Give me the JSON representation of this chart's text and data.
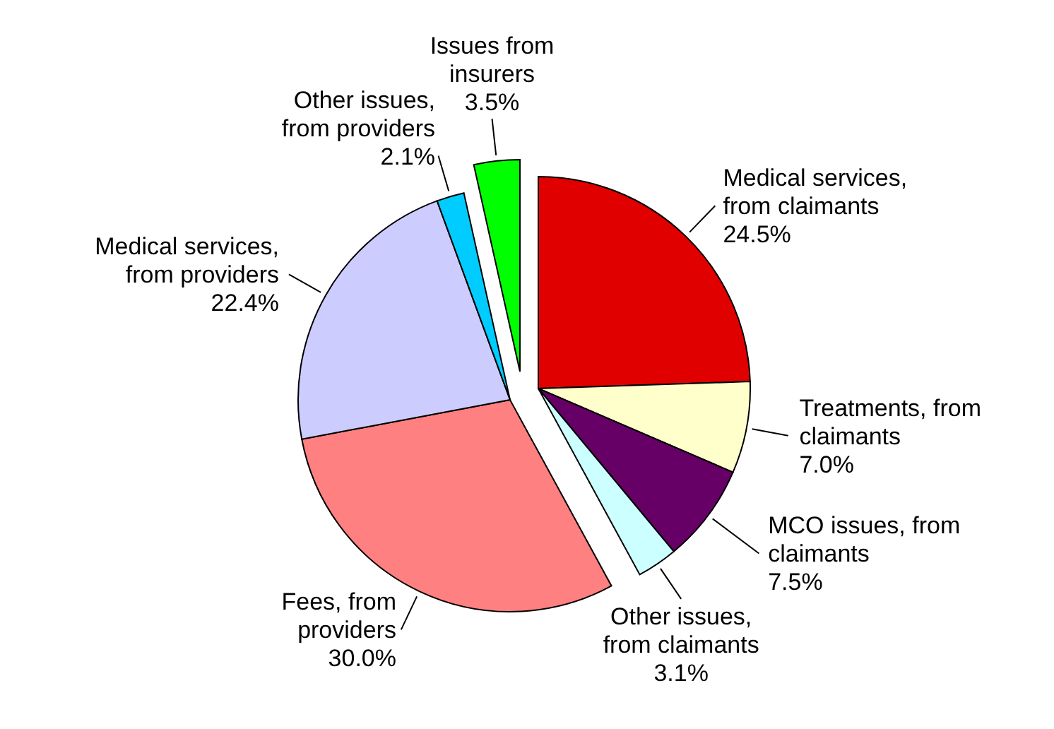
{
  "chart_data": {
    "type": "pie",
    "categories": [
      "Medical services, from claimants",
      "Treatments, from claimants",
      "MCO issues, from claimants",
      "Other issues, from claimants",
      "Fees, from providers",
      "Medical services, from providers",
      "Other issues, from providers",
      "Issues from insurers"
    ],
    "values": [
      24.5,
      7.0,
      7.5,
      3.1,
      30.0,
      22.4,
      2.1,
      3.5
    ],
    "colors": [
      "#e00000",
      "#ffffcc",
      "#660066",
      "#ccffff",
      "#ff8080",
      "#ccccff",
      "#00ccff",
      "#00ff00"
    ],
    "value_labels": [
      "24.5%",
      "7.0%",
      "7.5%",
      "3.1%",
      "30.0%",
      "22.4%",
      "2.1%",
      "3.5%"
    ]
  }
}
